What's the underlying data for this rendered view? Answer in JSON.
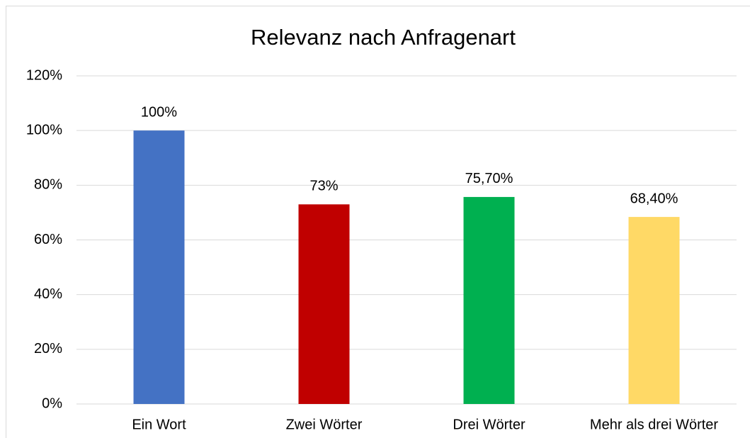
{
  "chart_data": {
    "type": "bar",
    "title": "Relevanz nach Anfragenart",
    "categories": [
      "Ein Wort",
      "Zwei Wörter",
      "Drei Wörter",
      "Mehr als drei Wörter"
    ],
    "values": [
      100,
      73,
      75.7,
      68.4
    ],
    "value_labels": [
      "100%",
      "73%",
      "75,70%",
      "68,40%"
    ],
    "colors": [
      "#4472c4",
      "#c00000",
      "#00b050",
      "#ffd966"
    ],
    "ylim": [
      0,
      120
    ],
    "yticks": [
      {
        "value": 0,
        "label": "0%"
      },
      {
        "value": 20,
        "label": "20%"
      },
      {
        "value": 40,
        "label": "40%"
      },
      {
        "value": 60,
        "label": "60%"
      },
      {
        "value": 80,
        "label": "80%"
      },
      {
        "value": 100,
        "label": "100%"
      },
      {
        "value": 120,
        "label": "120%"
      }
    ],
    "grid": true
  }
}
